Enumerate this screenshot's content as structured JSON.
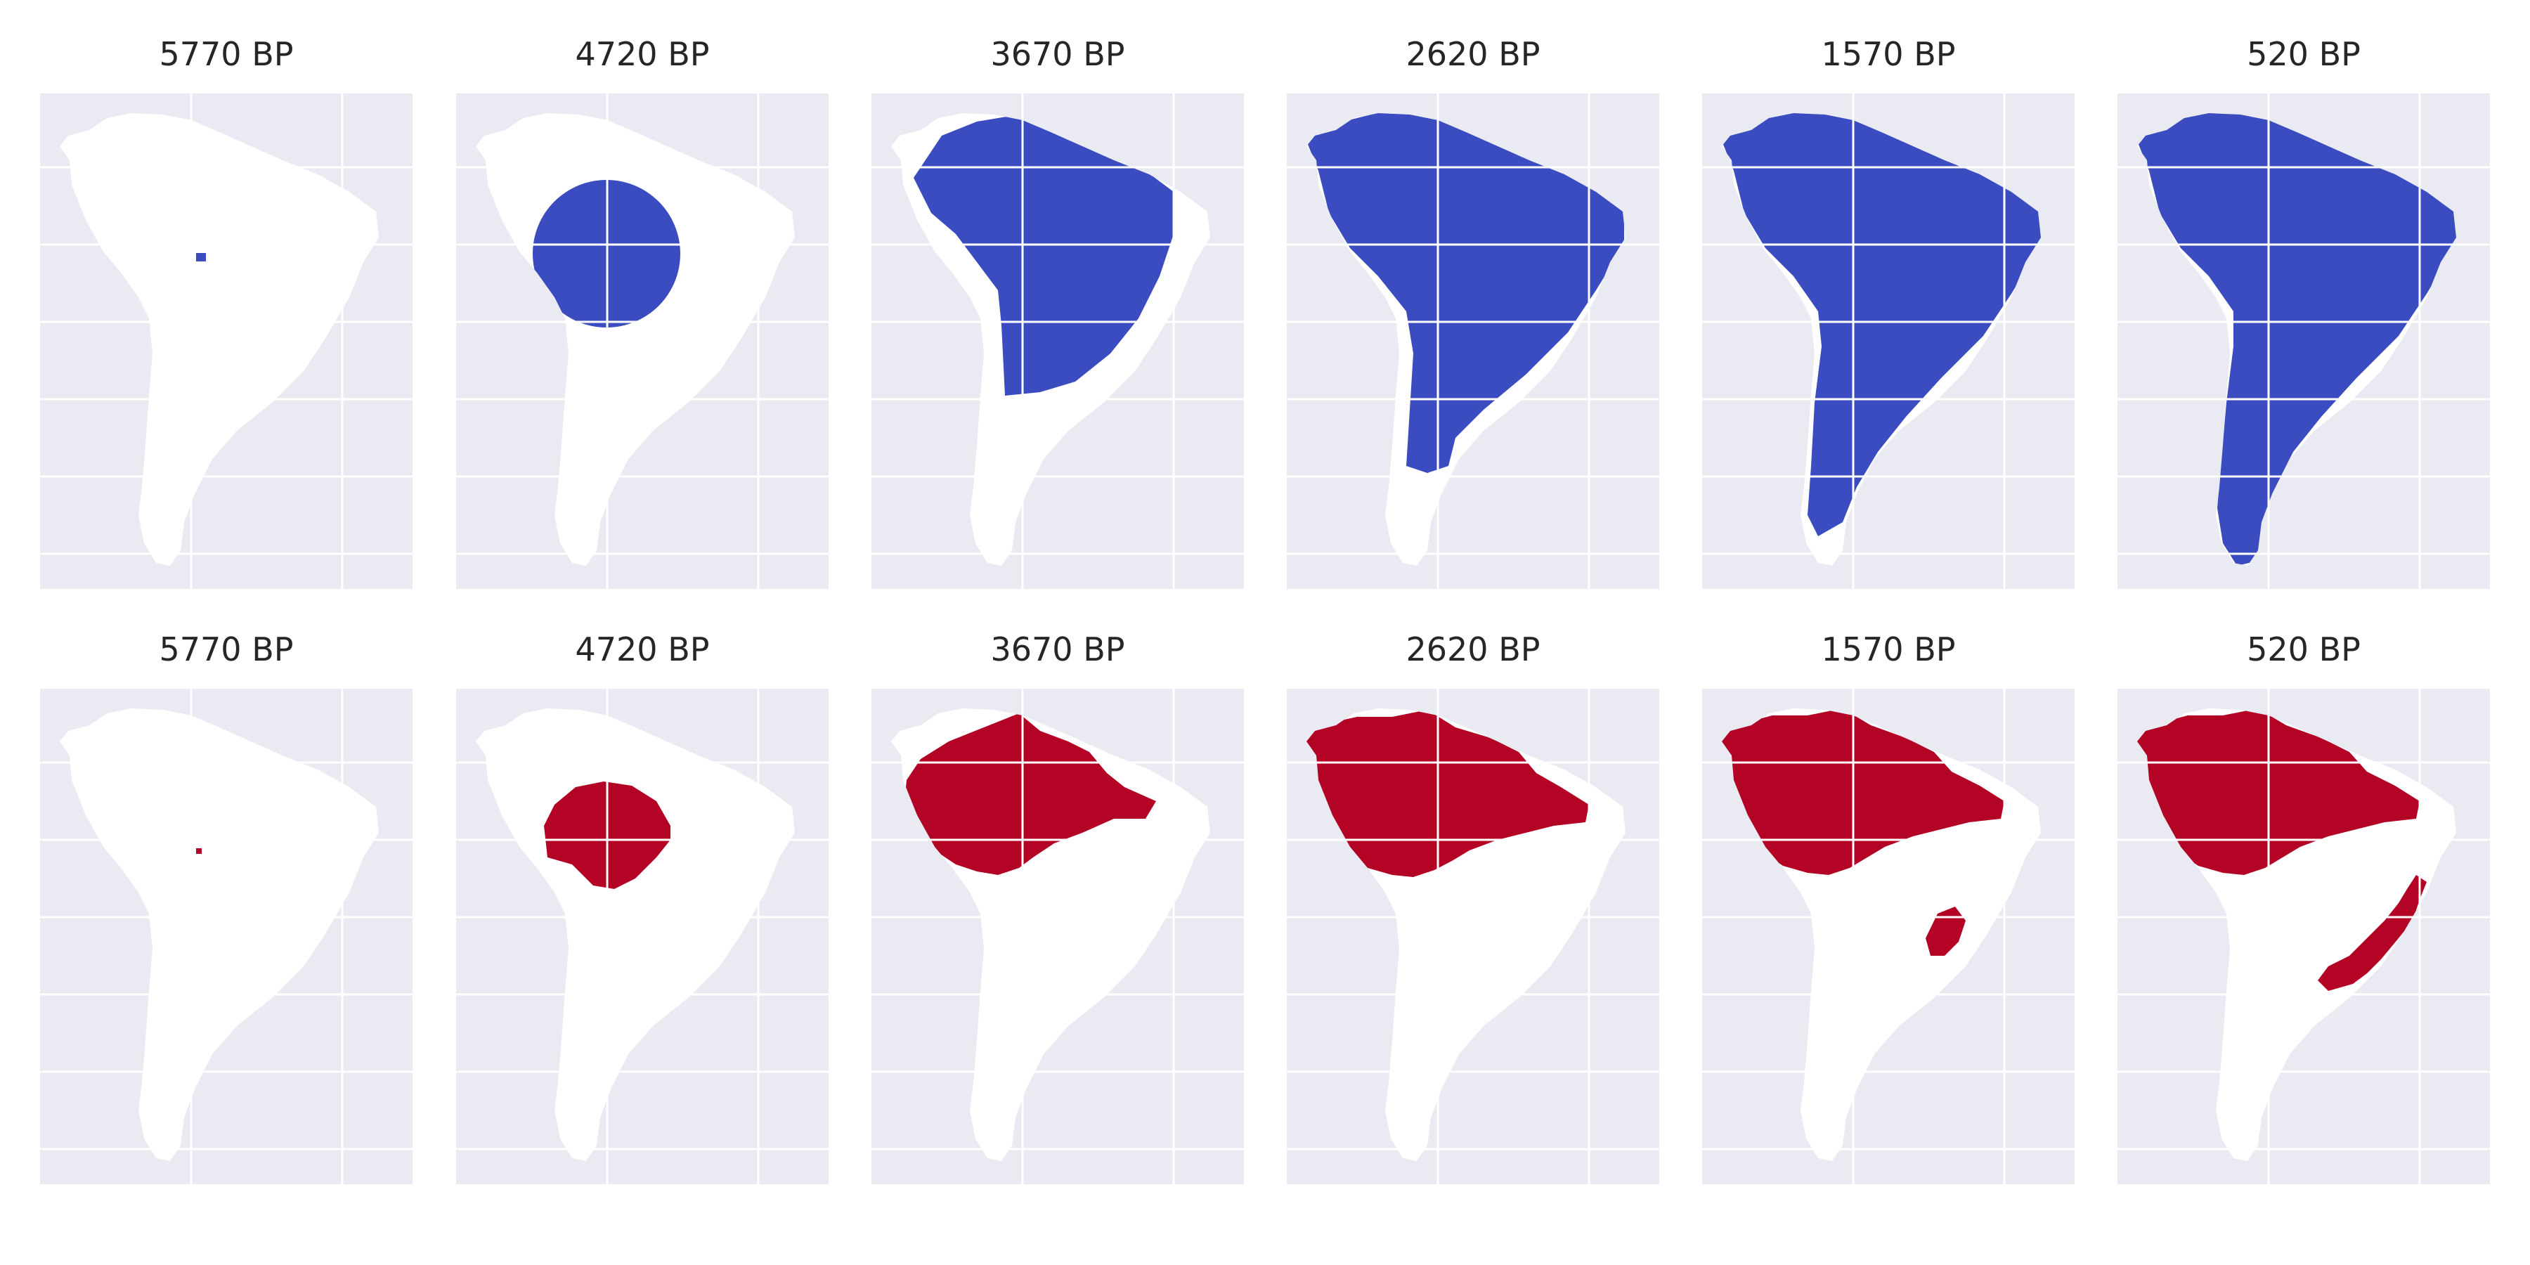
{
  "figure": {
    "rows": [
      {
        "color": "#3b4cc0",
        "panels": [
          {
            "title": "5770 BP"
          },
          {
            "title": "4720 BP"
          },
          {
            "title": "3670 BP"
          },
          {
            "title": "2620 BP"
          },
          {
            "title": "1570 BP"
          },
          {
            "title": "520 BP"
          }
        ]
      },
      {
        "color": "#b40426",
        "panels": [
          {
            "title": "5770 BP"
          },
          {
            "title": "4720 BP"
          },
          {
            "title": "3670 BP"
          },
          {
            "title": "2620 BP"
          },
          {
            "title": "1570 BP"
          },
          {
            "title": "520 BP"
          }
        ]
      }
    ],
    "background_color": "#eaeaf2",
    "land_color": "#ffffff",
    "grid": true
  }
}
